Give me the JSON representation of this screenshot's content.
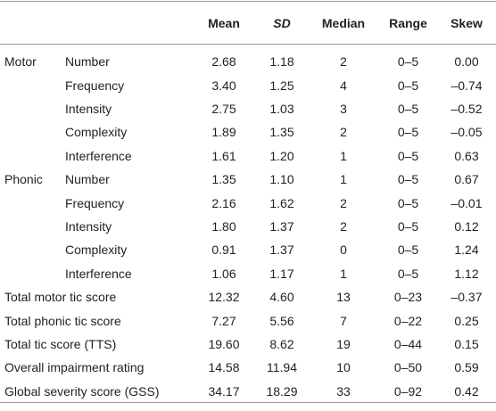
{
  "table": {
    "columns": [
      "Mean",
      "SD",
      "Median",
      "Range",
      "Skew"
    ],
    "rows": [
      {
        "group": "Motor",
        "label": "Number",
        "values": [
          "2.68",
          "1.18",
          "2",
          "0–5",
          "0.00"
        ]
      },
      {
        "label": "Frequency",
        "values": [
          "3.40",
          "1.25",
          "4",
          "0–5",
          "–0.74"
        ]
      },
      {
        "label": "Intensity",
        "values": [
          "2.75",
          "1.03",
          "3",
          "0–5",
          "–0.52"
        ]
      },
      {
        "label": "Complexity",
        "values": [
          "1.89",
          "1.35",
          "2",
          "0–5",
          "–0.05"
        ]
      },
      {
        "label": "Interference",
        "values": [
          "1.61",
          "1.20",
          "1",
          "0–5",
          "0.63"
        ]
      },
      {
        "group": "Phonic",
        "label": "Number",
        "values": [
          "1.35",
          "1.10",
          "1",
          "0–5",
          "0.67"
        ]
      },
      {
        "label": "Frequency",
        "values": [
          "2.16",
          "1.62",
          "2",
          "0–5",
          "–0.01"
        ]
      },
      {
        "label": "Intensity",
        "values": [
          "1.80",
          "1.37",
          "2",
          "0–5",
          "0.12"
        ]
      },
      {
        "label": "Complexity",
        "values": [
          "0.91",
          "1.37",
          "0",
          "0–5",
          "1.24"
        ]
      },
      {
        "label": "Interference",
        "values": [
          "1.06",
          "1.17",
          "1",
          "0–5",
          "1.12"
        ]
      },
      {
        "total": "Total motor tic score",
        "values": [
          "12.32",
          "4.60",
          "13",
          "0–23",
          "–0.37"
        ]
      },
      {
        "total": "Total phonic tic score",
        "values": [
          "7.27",
          "5.56",
          "7",
          "0–22",
          "0.25"
        ]
      },
      {
        "total": "Total tic score (TTS)",
        "values": [
          "19.60",
          "8.62",
          "19",
          "0–44",
          "0.15"
        ]
      },
      {
        "total": "Overall impairment rating",
        "values": [
          "14.58",
          "11.94",
          "10",
          "0–50",
          "0.59"
        ]
      },
      {
        "total": "Global severity score (GSS)",
        "values": [
          "34.17",
          "18.29",
          "33",
          "0–92",
          "0.42"
        ]
      }
    ]
  }
}
